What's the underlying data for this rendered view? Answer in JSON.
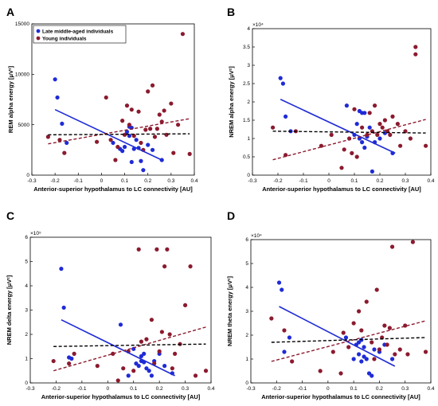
{
  "chart_data": [
    {
      "panel": "A",
      "type": "scatter",
      "xlabel": "Anterior-superior hypothalamus to LC connectivity [AU]",
      "ylabel": "REM alpha energy [μV²]",
      "multiplier": "",
      "xlim": [
        -0.3,
        0.4
      ],
      "ylim": [
        0,
        15000
      ],
      "xticks": [
        -0.3,
        -0.2,
        -0.1,
        0,
        0.1,
        0.2,
        0.3,
        0.4
      ],
      "yticks": [
        0,
        5000,
        10000,
        15000
      ],
      "ytick_labels": [
        "0",
        "5000",
        "10000",
        "15000"
      ],
      "legend": {
        "position": "top-left",
        "entries": [
          "Late middle-aged individuals",
          "Young individuals"
        ]
      },
      "series": [
        {
          "name": "Late middle-aged individuals",
          "color": "#1f2bd6",
          "x": [
            -0.2,
            -0.19,
            -0.17,
            -0.15,
            0.05,
            0.08,
            0.1,
            0.11,
            0.12,
            0.13,
            0.14,
            0.15,
            0.16,
            0.17,
            0.18,
            0.2,
            0.22,
            0.26,
            0.12,
            0.13,
            0.09
          ],
          "y": [
            9500,
            7700,
            5100,
            3200,
            3200,
            2600,
            2800,
            4300,
            4800,
            4700,
            2600,
            3500,
            2700,
            1400,
            500,
            3000,
            2500,
            1500,
            3900,
            1300,
            2400
          ]
        },
        {
          "name": "Young individuals",
          "color": "#8b1a2e",
          "x": [
            -0.23,
            -0.18,
            -0.16,
            -0.02,
            0.02,
            0.04,
            0.06,
            0.07,
            0.09,
            0.1,
            0.11,
            0.12,
            0.13,
            0.14,
            0.16,
            0.17,
            0.18,
            0.19,
            0.2,
            0.21,
            0.22,
            0.23,
            0.24,
            0.25,
            0.26,
            0.27,
            0.28,
            0.3,
            0.31,
            0.33,
            0.35,
            0.38
          ],
          "y": [
            3800,
            3500,
            2200,
            3300,
            7700,
            3500,
            1500,
            2800,
            5400,
            4000,
            6900,
            5000,
            6500,
            3900,
            6300,
            3200,
            2500,
            4500,
            8300,
            4600,
            8900,
            3800,
            4600,
            6000,
            5300,
            6400,
            4000,
            7100,
            2200,
            5000,
            14000,
            2100
          ]
        }
      ],
      "fits": [
        {
          "series": "Late middle-aged individuals",
          "color": "#1f2bd6",
          "style": "solid",
          "x": [
            -0.2,
            0.26
          ],
          "y": [
            6500,
            1500
          ]
        },
        {
          "series": "Young individuals",
          "color": "#8b1a2e",
          "style": "dashed",
          "x": [
            -0.23,
            0.38
          ],
          "y": [
            3100,
            5600
          ]
        },
        {
          "series": "all",
          "color": "#000000",
          "style": "dashed",
          "x": [
            -0.23,
            0.38
          ],
          "y": [
            4000,
            4100
          ]
        }
      ]
    },
    {
      "panel": "B",
      "type": "scatter",
      "xlabel": "Anterior-superior hypothalamus to LC connectivity [AU]",
      "ylabel": "NREM alpha energy [μV²]",
      "multiplier": "×10⁴",
      "xlim": [
        -0.3,
        0.4
      ],
      "ylim": [
        0,
        4
      ],
      "xticks": [
        -0.3,
        -0.2,
        -0.1,
        0,
        0.1,
        0.2,
        0.3,
        0.4
      ],
      "yticks": [
        0,
        0.5,
        1,
        1.5,
        2,
        2.5,
        3,
        3.5,
        4
      ],
      "ytick_labels": [
        "0",
        "0.5",
        "1",
        "1.5",
        "2",
        "2.5",
        "3",
        "3.5",
        "4"
      ],
      "series": [
        {
          "name": "Late middle-aged individuals",
          "color": "#1f2bd6",
          "x": [
            -0.19,
            -0.18,
            -0.17,
            -0.15,
            0.07,
            0.1,
            0.11,
            0.12,
            0.13,
            0.13,
            0.14,
            0.15,
            0.16,
            0.17,
            0.18,
            0.2,
            0.22,
            0.25,
            0.12,
            0.14
          ],
          "y": [
            2.65,
            2.5,
            1.6,
            1.2,
            1.9,
            1.1,
            1.4,
            1.75,
            1.7,
            0.9,
            1.7,
            1.05,
            1.3,
            0.1,
            0.9,
            1.0,
            1.15,
            0.6,
            1.0,
            0.75
          ]
        },
        {
          "name": "Young individuals",
          "color": "#8b1a2e",
          "x": [
            -0.22,
            -0.17,
            -0.13,
            -0.03,
            0.01,
            0.05,
            0.06,
            0.08,
            0.09,
            0.1,
            0.11,
            0.13,
            0.15,
            0.16,
            0.17,
            0.18,
            0.19,
            0.2,
            0.21,
            0.22,
            0.23,
            0.24,
            0.25,
            0.27,
            0.28,
            0.3,
            0.32,
            0.34,
            0.34,
            0.38
          ],
          "y": [
            1.3,
            0.55,
            1.2,
            0.8,
            1.1,
            0.2,
            0.7,
            1.0,
            0.6,
            1.8,
            0.5,
            1.3,
            1.1,
            1.7,
            1.2,
            1.9,
            1.1,
            1.4,
            1.3,
            1.5,
            1.2,
            1.1,
            1.6,
            1.4,
            0.8,
            1.2,
            1.0,
            3.5,
            3.3,
            0.8
          ]
        }
      ],
      "fits": [
        {
          "series": "Late middle-aged individuals",
          "color": "#1f2bd6",
          "style": "solid",
          "x": [
            -0.19,
            0.26
          ],
          "y": [
            2.07,
            0.6
          ]
        },
        {
          "series": "Young individuals",
          "color": "#8b1a2e",
          "style": "dashed",
          "x": [
            -0.22,
            0.38
          ],
          "y": [
            0.42,
            1.52
          ]
        },
        {
          "series": "all",
          "color": "#000000",
          "style": "dashed",
          "x": [
            -0.22,
            0.38
          ],
          "y": [
            1.2,
            1.15
          ]
        }
      ]
    },
    {
      "panel": "C",
      "type": "scatter",
      "xlabel": "Anterior-superior hypothalamus to LC connectivity [AU]",
      "ylabel": "NREM delta energy [μV²]",
      "multiplier": "×10⁵",
      "xlim": [
        -0.3,
        0.4
      ],
      "ylim": [
        0,
        6
      ],
      "xticks": [
        -0.3,
        -0.2,
        -0.1,
        0,
        0.1,
        0.2,
        0.3,
        0.4
      ],
      "yticks": [
        0,
        1,
        2,
        3,
        4,
        5,
        6
      ],
      "ytick_labels": [
        "0",
        "1",
        "2",
        "3",
        "4",
        "5",
        "6"
      ],
      "series": [
        {
          "name": "Late middle-aged individuals",
          "color": "#1f2bd6",
          "x": [
            -0.18,
            -0.17,
            -0.15,
            -0.14,
            0.05,
            0.08,
            0.1,
            0.11,
            0.12,
            0.13,
            0.14,
            0.15,
            0.16,
            0.17,
            0.18,
            0.2,
            0.22,
            0.25,
            0.13,
            0.14
          ],
          "y": [
            4.7,
            3.1,
            1.05,
            1.0,
            2.4,
            0.3,
            1.4,
            0.8,
            0.7,
            0.9,
            1.2,
            0.6,
            0.5,
            0.3,
            0.9,
            1.2,
            0.7,
            0.4,
            1.1,
            0.85
          ]
        },
        {
          "name": "Young individuals",
          "color": "#8b1a2e",
          "x": [
            -0.21,
            -0.15,
            -0.13,
            -0.04,
            0.02,
            0.04,
            0.06,
            0.08,
            0.1,
            0.12,
            0.13,
            0.15,
            0.17,
            0.18,
            0.19,
            0.2,
            0.21,
            0.22,
            0.23,
            0.24,
            0.25,
            0.26,
            0.28,
            0.3,
            0.32,
            0.34,
            0.38
          ],
          "y": [
            0.9,
            0.8,
            1.2,
            0.7,
            1.2,
            0.1,
            0.6,
            1.3,
            0.5,
            5.5,
            1.7,
            1.8,
            2.6,
            0.8,
            5.5,
            1.3,
            2.1,
            4.8,
            5.5,
            2.0,
            0.6,
            1.2,
            1.6,
            3.2,
            4.8,
            0.3,
            0.5
          ]
        }
      ],
      "fits": [
        {
          "series": "Late middle-aged individuals",
          "color": "#1f2bd6",
          "style": "solid",
          "x": [
            -0.18,
            0.26
          ],
          "y": [
            2.6,
            0.3
          ]
        },
        {
          "series": "Young individuals",
          "color": "#8b1a2e",
          "style": "dashed",
          "x": [
            -0.21,
            0.38
          ],
          "y": [
            0.5,
            2.3
          ]
        },
        {
          "series": "all",
          "color": "#000000",
          "style": "dashed",
          "x": [
            -0.21,
            0.38
          ],
          "y": [
            1.5,
            1.6
          ]
        }
      ]
    },
    {
      "panel": "D",
      "type": "scatter",
      "xlabel": "Anterior-superior hypothalamus to LC connectivity [AU]",
      "ylabel": "NREM theta energy [μV²]",
      "multiplier": "×10⁴",
      "xlim": [
        -0.3,
        0.4
      ],
      "ylim": [
        0,
        6
      ],
      "xticks": [
        -0.3,
        -0.2,
        -0.1,
        0,
        0.1,
        0.2,
        0.3,
        0.4
      ],
      "yticks": [
        0,
        1,
        2,
        3,
        4,
        5,
        6
      ],
      "ytick_labels": [
        "0",
        "1",
        "2",
        "3",
        "4",
        "5",
        "6"
      ],
      "series": [
        {
          "name": "Late middle-aged individuals",
          "color": "#1f2bd6",
          "x": [
            -0.19,
            -0.18,
            -0.17,
            -0.15,
            0.07,
            0.1,
            0.11,
            0.12,
            0.13,
            0.14,
            0.15,
            0.16,
            0.17,
            0.18,
            0.2,
            0.22,
            0.25,
            0.12,
            0.13,
            0.14
          ],
          "y": [
            4.2,
            3.9,
            1.3,
            1.9,
            1.9,
            1.0,
            1.6,
            1.7,
            1.8,
            1.5,
            1.0,
            0.4,
            0.3,
            1.4,
            1.3,
            1.6,
            1.0,
            1.2,
            0.9,
            1.1
          ]
        },
        {
          "name": "Young individuals",
          "color": "#8b1a2e",
          "x": [
            -0.22,
            -0.17,
            -0.14,
            -0.03,
            0.02,
            0.05,
            0.06,
            0.08,
            0.1,
            0.12,
            0.13,
            0.15,
            0.17,
            0.18,
            0.19,
            0.2,
            0.21,
            0.22,
            0.23,
            0.24,
            0.25,
            0.26,
            0.28,
            0.3,
            0.31,
            0.33,
            0.38
          ],
          "y": [
            2.7,
            2.2,
            0.9,
            0.5,
            1.3,
            0.4,
            2.1,
            1.5,
            2.5,
            3.0,
            2.2,
            3.4,
            1.7,
            1.0,
            3.9,
            1.4,
            1.9,
            2.4,
            1.6,
            2.3,
            5.7,
            1.2,
            1.4,
            2.4,
            1.2,
            5.9,
            1.3
          ]
        }
      ],
      "fits": [
        {
          "series": "Late middle-aged individuals",
          "color": "#1f2bd6",
          "style": "solid",
          "x": [
            -0.19,
            0.26
          ],
          "y": [
            3.2,
            0.7
          ]
        },
        {
          "series": "Young individuals",
          "color": "#8b1a2e",
          "style": "dashed",
          "x": [
            -0.22,
            0.38
          ],
          "y": [
            0.9,
            2.6
          ]
        },
        {
          "series": "all",
          "color": "#000000",
          "style": "dashed",
          "x": [
            -0.22,
            0.38
          ],
          "y": [
            1.7,
            1.9
          ]
        }
      ]
    }
  ]
}
